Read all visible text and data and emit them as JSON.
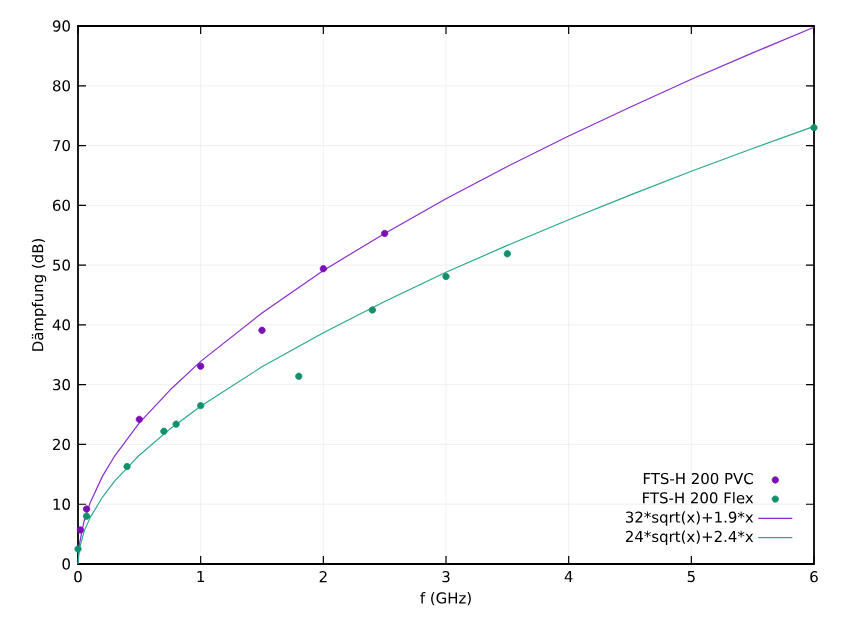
{
  "chart_data": {
    "type": "scatter",
    "xlabel": "f (GHz)",
    "ylabel": "Dämpfung (dB)",
    "xlim": [
      0,
      6
    ],
    "ylim": [
      0,
      90
    ],
    "xticks": [
      0,
      1,
      2,
      3,
      4,
      5,
      6
    ],
    "yticks": [
      0,
      10,
      20,
      30,
      40,
      50,
      60,
      70,
      80,
      90
    ],
    "grid": true,
    "legend": "bottom right",
    "series": [
      {
        "name": "FTS-H 200 PVC",
        "marker": "circle",
        "color": "#7b0fb5",
        "x": [
          0.02,
          0.07,
          0.5,
          1,
          1.5,
          2,
          2.5
        ],
        "values": [
          5.7,
          9.2,
          24.2,
          33.1,
          39.1,
          49.4,
          55.3
        ]
      },
      {
        "name": "FTS-H 200 Flex",
        "marker": "circle",
        "color": "#11906e",
        "x": [
          0,
          0.07,
          0.4,
          0.7,
          0.8,
          1,
          1.8,
          2.4,
          3,
          3.5,
          6
        ],
        "values": [
          2.5,
          8,
          16.3,
          22.2,
          23.4,
          26.5,
          31.4,
          42.5,
          48.1,
          51.9,
          73
        ]
      },
      {
        "name": "32*sqrt(x)+1.9*x",
        "type": "line",
        "marker": "none",
        "color": "#8b2bd1",
        "x": [
          0,
          0.01,
          0.05,
          0.1,
          0.2,
          0.3,
          0.5,
          0.75,
          1,
          1.5,
          2,
          2.5,
          3,
          3.5,
          4,
          4.5,
          5,
          5.5,
          6
        ],
        "values": [
          0,
          3.2,
          7.2,
          10.3,
          14.7,
          18.1,
          23.6,
          29.1,
          33.9,
          42.0,
          49.1,
          55.3,
          61.1,
          66.5,
          71.6,
          76.4,
          81.1,
          85.5,
          89.8
        ]
      },
      {
        "name": "24*sqrt(x)+2.4*x",
        "type": "line",
        "marker": "none",
        "color": "#2aa88a",
        "x": [
          0,
          0.01,
          0.05,
          0.1,
          0.2,
          0.3,
          0.5,
          0.75,
          1,
          1.5,
          2,
          2.5,
          3,
          3.5,
          4,
          4.5,
          5,
          5.5,
          6
        ],
        "values": [
          0,
          2.4,
          5.5,
          7.8,
          11.2,
          13.9,
          18.2,
          22.6,
          26.4,
          33.0,
          38.7,
          43.9,
          48.8,
          53.3,
          57.6,
          61.7,
          65.7,
          69.5,
          73.2
        ]
      }
    ]
  }
}
